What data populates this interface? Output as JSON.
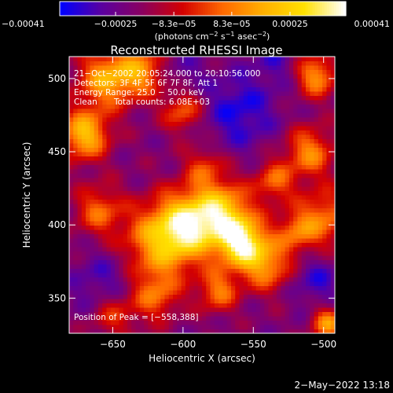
{
  "chart_data": {
    "type": "heatmap",
    "title": "Reconstructed RHESSI Image",
    "xlabel": "Heliocentric X (arcsec)",
    "ylabel": "Heliocentric Y (arcsec)",
    "xlim": [
      -681,
      -492
    ],
    "ylim": [
      326,
      515
    ],
    "x_ticks": [
      -650,
      -600,
      -550,
      -500
    ],
    "x_tick_labels": [
      "−650",
      "−600",
      "−550",
      "−500"
    ],
    "y_ticks": [
      350,
      400,
      450,
      500
    ],
    "y_tick_labels": [
      "350",
      "400",
      "450",
      "500"
    ],
    "colorbar": {
      "min": -0.00041,
      "max": 0.00041,
      "tick_values": [
        -0.00041,
        -0.00025,
        -8.3e-05,
        8.3e-05,
        0.00025,
        0.00041
      ],
      "tick_labels": [
        "−0.00041",
        "−0.00025",
        "−8.3e−05",
        "8.3e−05",
        "0.00025",
        "0.00041"
      ],
      "unit_parts": [
        "(photons cm",
        "−2",
        " s",
        "−1",
        " asec",
        "−2",
        ")"
      ],
      "colormap": [
        "#0000ff",
        "#5a00a0",
        "#8a0060",
        "#d40000",
        "#ff6a00",
        "#ffb000",
        "#ffe100",
        "#ffffff"
      ]
    },
    "annotations": {
      "time_range": "21−Oct−2002 20:05:24.000 to 20:10:56.000",
      "detectors": "Detectors: 3F 4F 5F 6F 7F 8F, Att 1",
      "energy_range": "Energy Range: 25.0 − 50.0 keV",
      "method": "Clean",
      "total_counts": "Total counts: 6.08E+03",
      "peak": "Position of Peak = [−558,388]"
    },
    "sources": [
      {
        "x": -558,
        "y": 388,
        "weight": 1.0,
        "sigma": 12
      },
      {
        "x": -596,
        "y": 400,
        "weight": 0.85,
        "sigma": 16
      },
      {
        "x": -572,
        "y": 410,
        "weight": 0.7,
        "sigma": 14
      },
      {
        "x": -618,
        "y": 388,
        "weight": 0.6,
        "sigma": 18
      },
      {
        "x": -540,
        "y": 372,
        "weight": 0.55,
        "sigma": 12
      },
      {
        "x": -670,
        "y": 462,
        "weight": 0.75,
        "sigma": 12
      },
      {
        "x": -655,
        "y": 500,
        "weight": 0.65,
        "sigma": 14
      },
      {
        "x": -630,
        "y": 505,
        "weight": 0.55,
        "sigma": 12
      },
      {
        "x": -600,
        "y": 478,
        "weight": 0.45,
        "sigma": 10
      },
      {
        "x": -505,
        "y": 502,
        "weight": 0.6,
        "sigma": 10
      },
      {
        "x": -510,
        "y": 450,
        "weight": 0.55,
        "sigma": 12
      },
      {
        "x": -500,
        "y": 405,
        "weight": 0.5,
        "sigma": 14
      },
      {
        "x": -535,
        "y": 430,
        "weight": 0.45,
        "sigma": 10
      },
      {
        "x": -575,
        "y": 355,
        "weight": 0.5,
        "sigma": 10
      },
      {
        "x": -620,
        "y": 352,
        "weight": 0.45,
        "sigma": 12
      },
      {
        "x": -660,
        "y": 410,
        "weight": 0.45,
        "sigma": 12
      },
      {
        "x": -650,
        "y": 340,
        "weight": 0.4,
        "sigma": 12
      },
      {
        "x": -497,
        "y": 333,
        "weight": 0.6,
        "sigma": 8
      },
      {
        "x": -520,
        "y": 395,
        "weight": 0.4,
        "sigma": 10
      },
      {
        "x": -585,
        "y": 440,
        "weight": 0.35,
        "sigma": 10
      }
    ],
    "negative_regions": [
      {
        "x": -560,
        "y": 478,
        "weight": 0.7,
        "sigma": 18
      },
      {
        "x": -655,
        "y": 358,
        "weight": 0.6,
        "sigma": 16
      },
      {
        "x": -505,
        "y": 362,
        "weight": 0.55,
        "sigma": 12
      },
      {
        "x": -600,
        "y": 505,
        "weight": 0.35,
        "sigma": 10
      },
      {
        "x": -535,
        "y": 512,
        "weight": 0.4,
        "sigma": 10
      }
    ]
  },
  "footer": {
    "timestamp": "2−May−2022 13:18"
  }
}
